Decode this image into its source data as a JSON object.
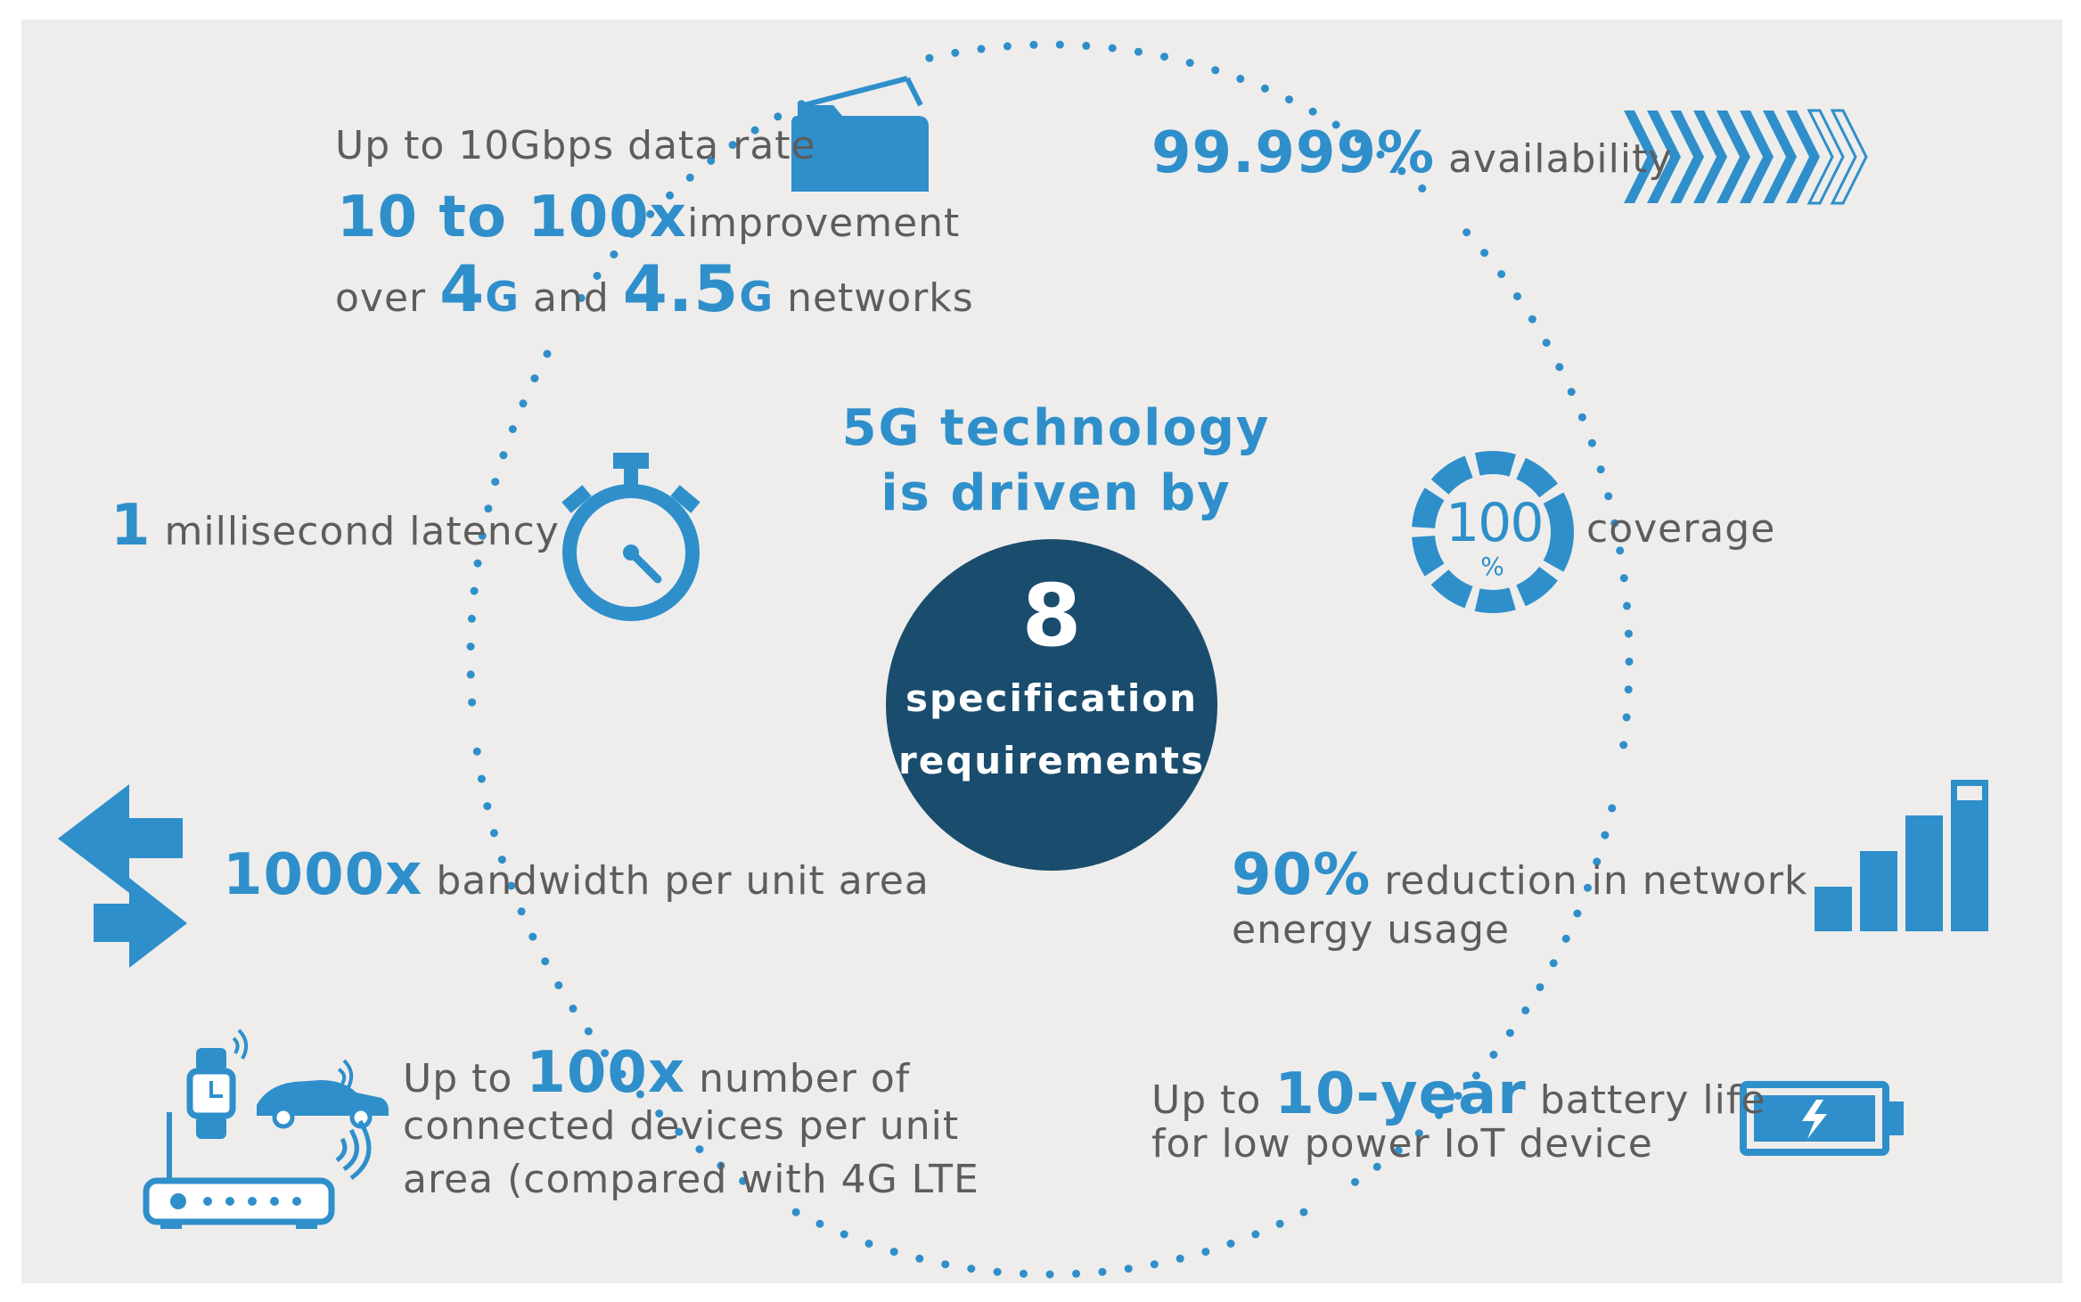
{
  "title": {
    "line1": "5G technology",
    "line2": "is driven by"
  },
  "center": {
    "number": "8",
    "line1": "specification",
    "line2": "requirements"
  },
  "items": {
    "data_rate": {
      "line1": "Up to 10Gbps data rate",
      "improvement_value": "10 to 100x",
      "improvement_text": "improvement",
      "over": "over",
      "g4_num": "4",
      "g4_unit": "G",
      "and": "and",
      "g45_num": "4.5",
      "g45_unit": "G",
      "networks": "networks"
    },
    "availability": {
      "value": "99.999%",
      "label": "availability"
    },
    "latency": {
      "value": "1",
      "label": "millisecond latency"
    },
    "coverage": {
      "dial_value": "100",
      "dial_unit": "%",
      "label": "coverage"
    },
    "bandwidth": {
      "value": "1000x",
      "label": "bandwidth per unit area"
    },
    "energy": {
      "value": "90%",
      "line1": "reduction in network",
      "line2": "energy usage"
    },
    "devices": {
      "prefix": "Up to",
      "value": "100x",
      "line1_rest": "number of",
      "line2": "connected devices per unit",
      "line3": "area (compared with 4G LTE"
    },
    "battery": {
      "prefix": "Up to",
      "value": "10-year",
      "rest": "battery life",
      "line2": "for low power IoT device"
    }
  },
  "colors": {
    "accent": "#2f8fcb",
    "center_fill": "#1a4c6d",
    "text": "#5d5d5d",
    "background": "#eeedeb"
  },
  "icons": [
    "folder-icon",
    "chevrons-icon",
    "stopwatch-icon",
    "coverage-dial-icon",
    "arrows-icon",
    "signal-bars-icon",
    "iot-devices-icon",
    "battery-icon"
  ]
}
